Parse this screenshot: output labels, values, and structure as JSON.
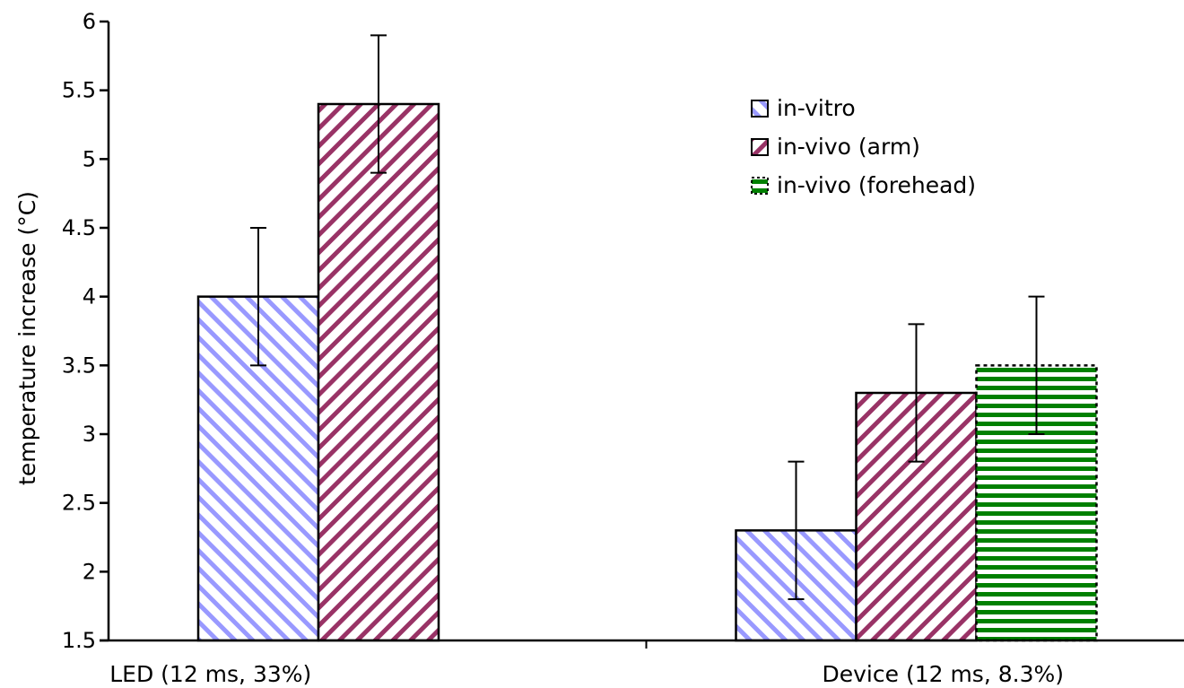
{
  "chart_data": {
    "type": "bar",
    "title": "",
    "xlabel": "",
    "ylabel": "temperature increase (°C)",
    "ylim": [
      1.5,
      6
    ],
    "yticks": [
      "1.5",
      "2",
      "2.5",
      "3",
      "3.5",
      "4",
      "4.5",
      "5",
      "5.5",
      "6"
    ],
    "grid": false,
    "legend_position": "top-right",
    "categories": [
      "LED (12 ms, 33%)",
      "Device (12 ms, 8.3%)"
    ],
    "series": [
      {
        "name": "in-vitro",
        "values": [
          4.0,
          2.3
        ],
        "errors": [
          0.5,
          0.5
        ],
        "color": "#9999ff",
        "pattern": "diagonal-down"
      },
      {
        "name": "in-vivo (arm)",
        "values": [
          5.4,
          3.3
        ],
        "errors": [
          0.5,
          0.5
        ],
        "color": "#993366",
        "pattern": "diagonal-up"
      },
      {
        "name": "in-vivo (forehead)",
        "values": [
          null,
          3.5
        ],
        "errors": [
          null,
          0.5
        ],
        "color": "#008000",
        "pattern": "horizontal"
      }
    ]
  }
}
